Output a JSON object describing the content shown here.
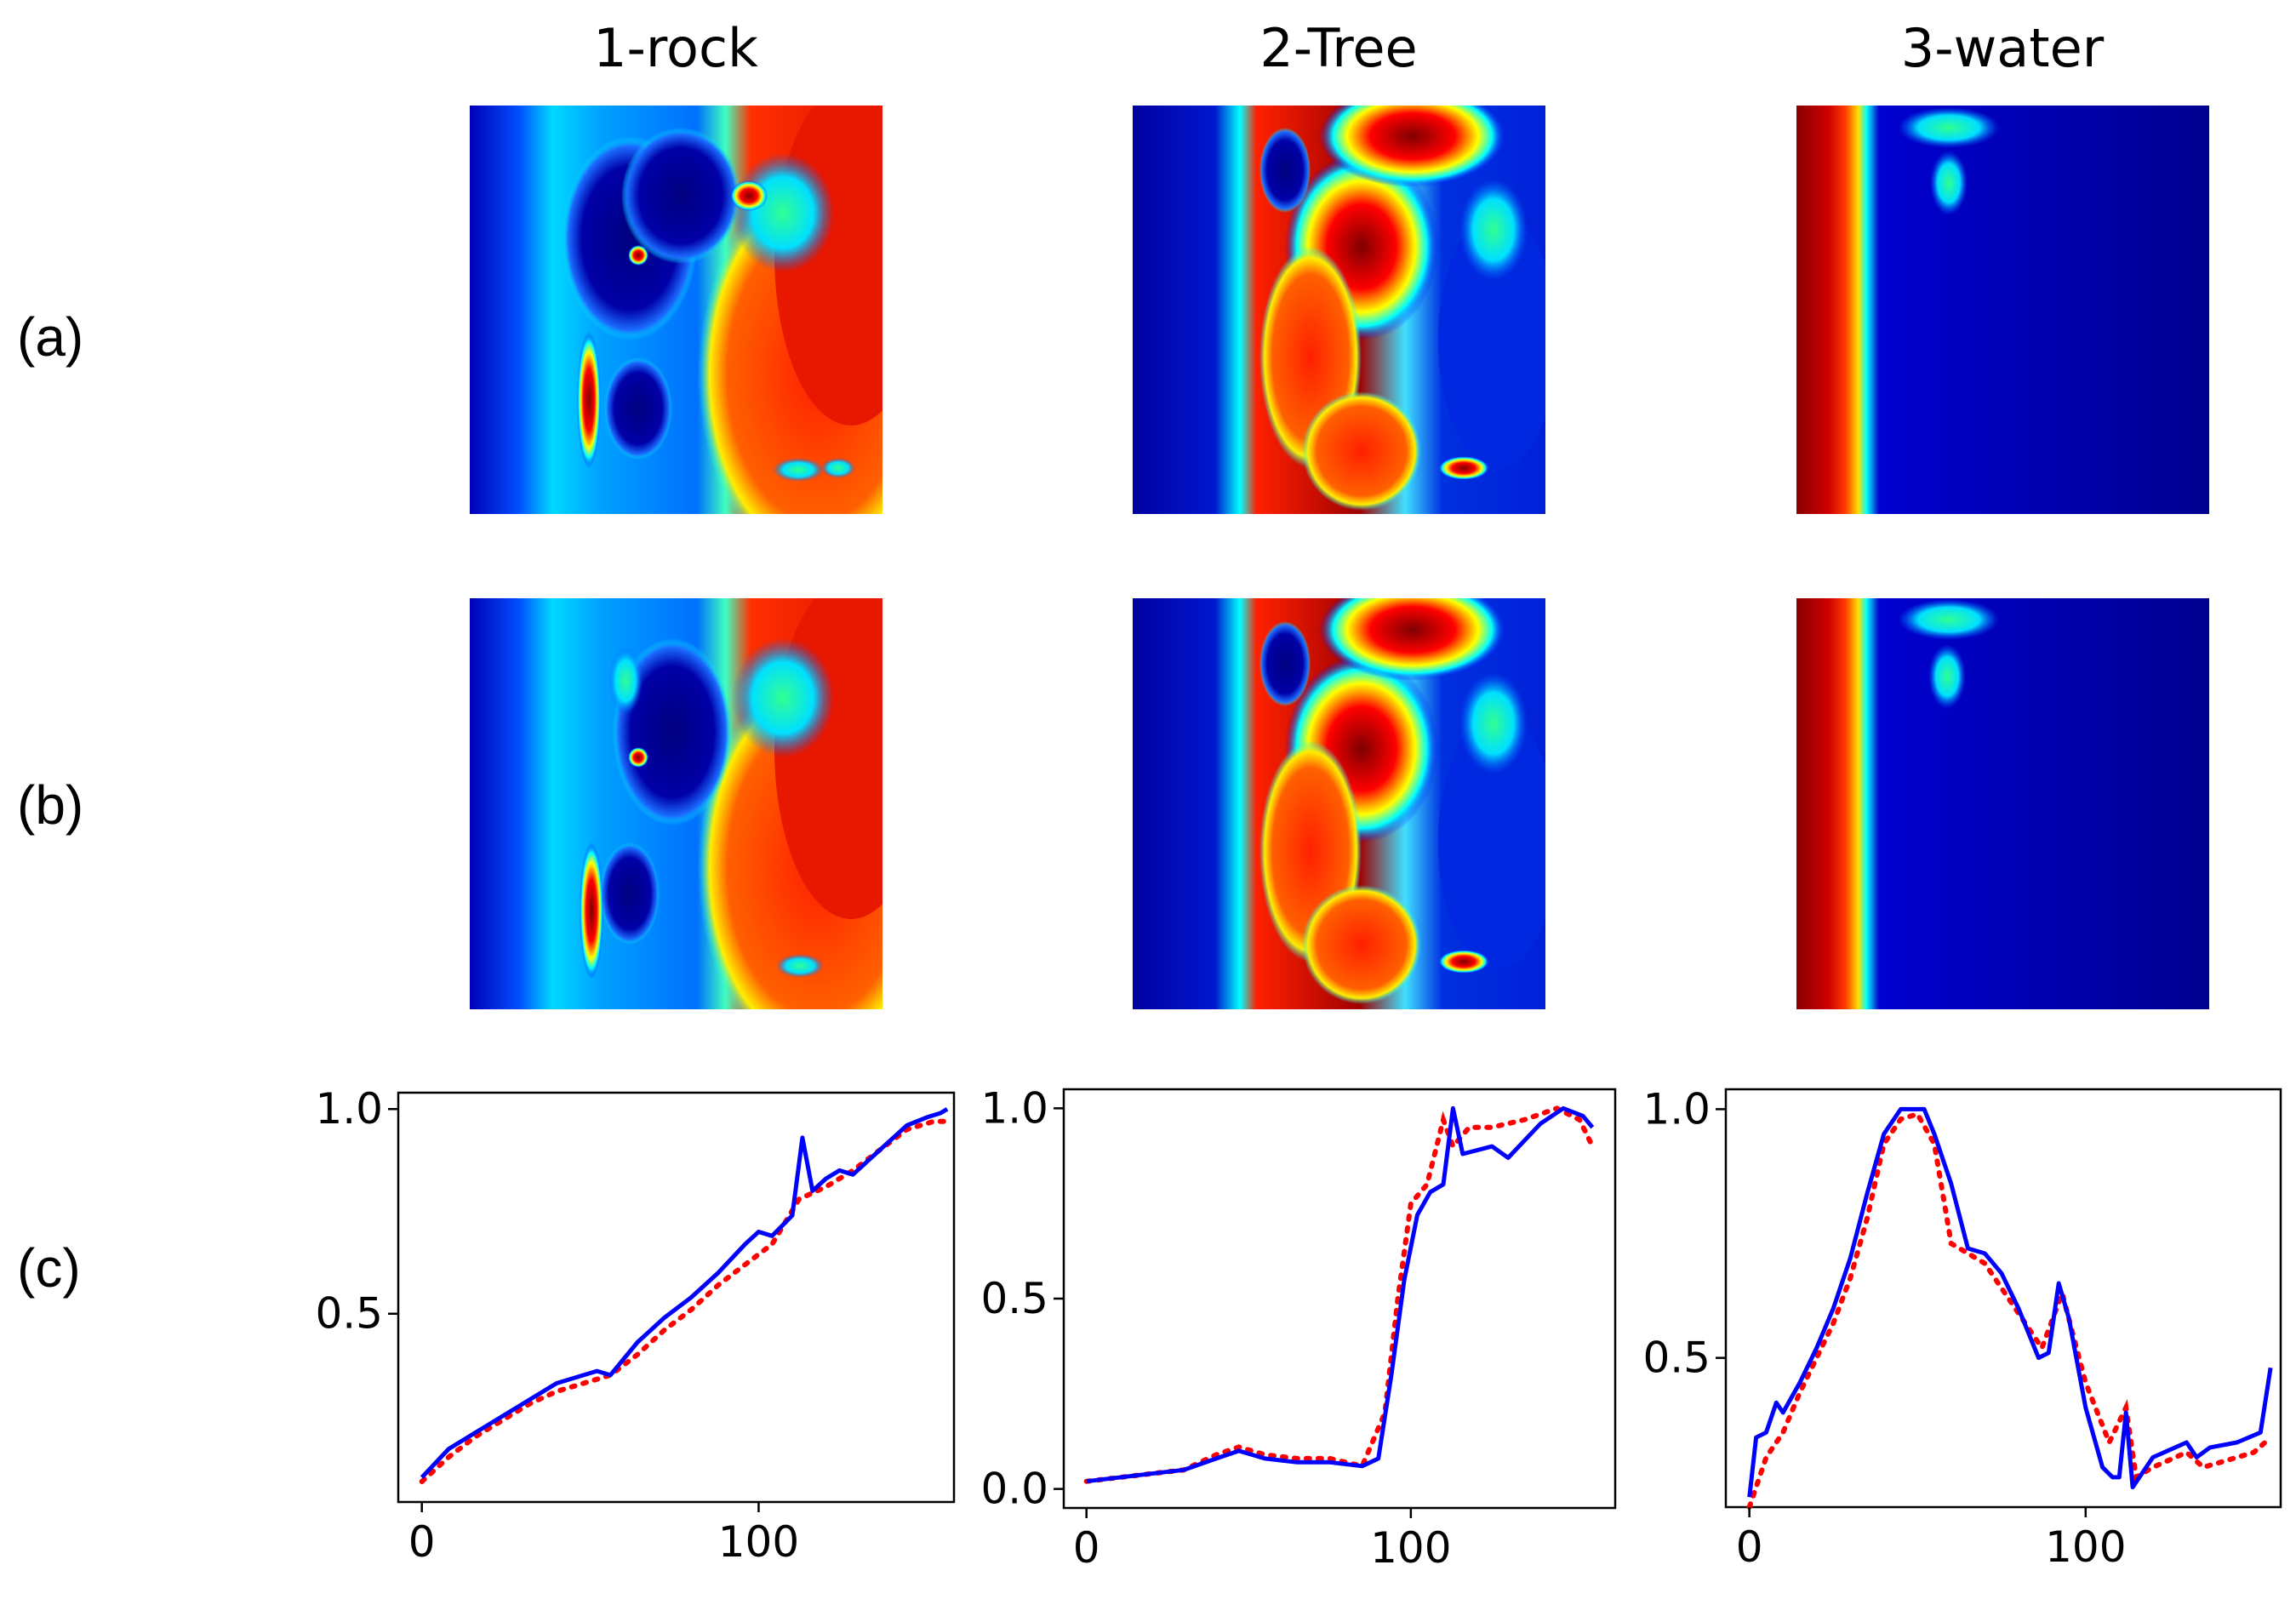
{
  "figure": {
    "column_titles": [
      "1-rock",
      "2-Tree",
      "3-water"
    ],
    "row_labels": [
      "(a)",
      "(b)",
      "(c)"
    ],
    "colormap": [
      "#00007f",
      "#0000ff",
      "#00ffff",
      "#ffff00",
      "#ff0000",
      "#7f0000"
    ]
  },
  "chart_data": [
    {
      "type": "line",
      "title": "1-rock",
      "xlabel": "",
      "ylabel": "",
      "xlim": [
        -7,
        158
      ],
      "ylim": [
        0.04,
        1.04
      ],
      "xticks": [
        0,
        100
      ],
      "xtick_labels": [
        "0",
        "100"
      ],
      "yticks": [
        0.5,
        1.0
      ],
      "ytick_labels": [
        "0.5",
        "1.0"
      ],
      "series": [
        {
          "style": "dotted",
          "color": "#ff0000",
          "x": [
            0,
            8,
            16,
            24,
            32,
            40,
            48,
            56,
            64,
            72,
            80,
            88,
            96,
            104,
            112,
            120,
            128,
            136,
            144,
            152,
            156
          ],
          "y": [
            0.09,
            0.15,
            0.2,
            0.24,
            0.28,
            0.31,
            0.33,
            0.35,
            0.4,
            0.46,
            0.51,
            0.57,
            0.62,
            0.67,
            0.78,
            0.81,
            0.85,
            0.9,
            0.95,
            0.97,
            0.97
          ]
        },
        {
          "style": "solid",
          "color": "#0000ff",
          "x": [
            0,
            8,
            16,
            24,
            32,
            40,
            48,
            52,
            56,
            64,
            72,
            80,
            88,
            96,
            100,
            104,
            110,
            113,
            116,
            120,
            124,
            128,
            136,
            144,
            150,
            154,
            156
          ],
          "y": [
            0.1,
            0.17,
            0.21,
            0.25,
            0.29,
            0.33,
            0.35,
            0.36,
            0.35,
            0.43,
            0.49,
            0.54,
            0.6,
            0.67,
            0.7,
            0.69,
            0.74,
            0.93,
            0.8,
            0.83,
            0.85,
            0.84,
            0.9,
            0.96,
            0.98,
            0.99,
            1.0
          ]
        }
      ]
    },
    {
      "type": "line",
      "title": "2-Tree",
      "xlabel": "",
      "ylabel": "",
      "xlim": [
        -7,
        163
      ],
      "ylim": [
        -0.05,
        1.05
      ],
      "xticks": [
        0,
        100
      ],
      "xtick_labels": [
        "0",
        "100"
      ],
      "yticks": [
        0.0,
        0.5,
        1.0
      ],
      "ytick_labels": [
        "0.0",
        "0.5",
        "1.0"
      ],
      "series": [
        {
          "style": "dotted",
          "color": "#ff0000",
          "x": [
            0,
            10,
            20,
            30,
            40,
            47,
            55,
            65,
            75,
            85,
            92,
            96,
            100,
            105,
            110,
            113,
            118,
            125,
            135,
            145,
            152,
            156
          ],
          "y": [
            0.02,
            0.03,
            0.04,
            0.05,
            0.09,
            0.11,
            0.09,
            0.08,
            0.08,
            0.06,
            0.2,
            0.5,
            0.75,
            0.8,
            0.97,
            0.9,
            0.95,
            0.95,
            0.97,
            1.0,
            0.97,
            0.9
          ]
        },
        {
          "style": "solid",
          "color": "#0000ff",
          "x": [
            0,
            10,
            20,
            30,
            40,
            47,
            55,
            65,
            75,
            85,
            90,
            94,
            98,
            102,
            106,
            110,
            113,
            116,
            125,
            130,
            140,
            147,
            153,
            156
          ],
          "y": [
            0.02,
            0.03,
            0.04,
            0.05,
            0.08,
            0.1,
            0.08,
            0.07,
            0.07,
            0.06,
            0.08,
            0.3,
            0.55,
            0.72,
            0.78,
            0.8,
            1.0,
            0.88,
            0.9,
            0.87,
            0.96,
            1.0,
            0.98,
            0.95
          ]
        }
      ]
    },
    {
      "type": "line",
      "title": "3-water",
      "xlabel": "",
      "ylabel": "",
      "xlim": [
        -7,
        158
      ],
      "ylim": [
        0.2,
        1.04
      ],
      "xticks": [
        0,
        100
      ],
      "xtick_labels": [
        "0",
        "100"
      ],
      "yticks": [
        0.5,
        1.0
      ],
      "ytick_labels": [
        "0.5",
        "1.0"
      ],
      "series": [
        {
          "style": "dotted",
          "color": "#ff0000",
          "x": [
            0,
            5,
            10,
            15,
            20,
            25,
            30,
            35,
            40,
            45,
            50,
            55,
            60,
            70,
            80,
            87,
            93,
            100,
            107,
            112,
            115,
            120,
            130,
            135,
            140,
            150,
            155
          ],
          "y": [
            0.2,
            0.3,
            0.35,
            0.43,
            0.5,
            0.57,
            0.66,
            0.78,
            0.93,
            0.98,
            0.99,
            0.93,
            0.73,
            0.69,
            0.59,
            0.52,
            0.63,
            0.45,
            0.33,
            0.4,
            0.26,
            0.28,
            0.31,
            0.28,
            0.29,
            0.31,
            0.34
          ]
        },
        {
          "style": "solid",
          "color": "#0000ff",
          "x": [
            0,
            2,
            5,
            8,
            10,
            15,
            20,
            25,
            30,
            35,
            40,
            45,
            48,
            50,
            52,
            55,
            60,
            65,
            70,
            75,
            80,
            86,
            89,
            92,
            95,
            100,
            105,
            108,
            110,
            112,
            114,
            120,
            130,
            133,
            137,
            145,
            152,
            155
          ],
          "y": [
            0.22,
            0.34,
            0.35,
            0.41,
            0.39,
            0.45,
            0.52,
            0.6,
            0.7,
            0.83,
            0.95,
            1.0,
            1.0,
            1.0,
            1.0,
            0.95,
            0.85,
            0.72,
            0.71,
            0.67,
            0.6,
            0.5,
            0.51,
            0.65,
            0.58,
            0.4,
            0.28,
            0.26,
            0.26,
            0.39,
            0.24,
            0.3,
            0.33,
            0.3,
            0.32,
            0.33,
            0.35,
            0.48
          ]
        }
      ]
    }
  ]
}
